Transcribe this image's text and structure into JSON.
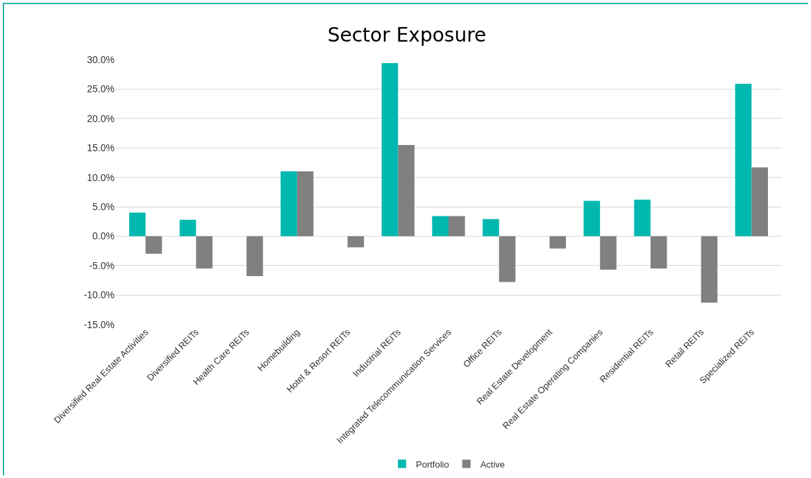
{
  "chart_data": {
    "type": "bar",
    "title": "Sector Exposure",
    "categories": [
      "Diversified Real Estate Activities",
      "Diversified REITs",
      "Health Care REITs",
      "Homebuilding",
      "Hotel & Resort REITs",
      "Industrial REITs",
      "Integrated Telecommunication Services",
      "Office REITs",
      "Real Estate Development",
      "Real Estate Operating Companies",
      "Residential REITs",
      "Retail REITs",
      "Specialized REITs"
    ],
    "series": [
      {
        "name": "Portfolio",
        "color": "#00b8b0",
        "values": [
          4.0,
          2.8,
          0,
          11.0,
          0,
          29.4,
          3.4,
          2.9,
          0,
          6.0,
          6.2,
          0,
          25.9
        ]
      },
      {
        "name": "Active",
        "color": "#808080",
        "values": [
          -3.0,
          -5.5,
          -6.8,
          11.0,
          -1.9,
          15.5,
          3.4,
          -7.8,
          -2.1,
          -5.7,
          -5.5,
          -11.3,
          11.7
        ]
      }
    ],
    "ylim": [
      -15,
      30
    ],
    "yticks": [
      {
        "value": -15,
        "label": "-15.0%"
      },
      {
        "value": -10,
        "label": "-10.0%"
      },
      {
        "value": -5,
        "label": "-5.0%"
      },
      {
        "value": 0,
        "label": "0.0%"
      },
      {
        "value": 5,
        "label": "5.0%"
      },
      {
        "value": 10,
        "label": "10.0%"
      },
      {
        "value": 15,
        "label": "15.0%"
      },
      {
        "value": 20,
        "label": "20.0%"
      },
      {
        "value": 25,
        "label": "25.0%"
      },
      {
        "value": 30,
        "label": "30.0%"
      }
    ],
    "grid": "y",
    "legend": "bottom"
  }
}
